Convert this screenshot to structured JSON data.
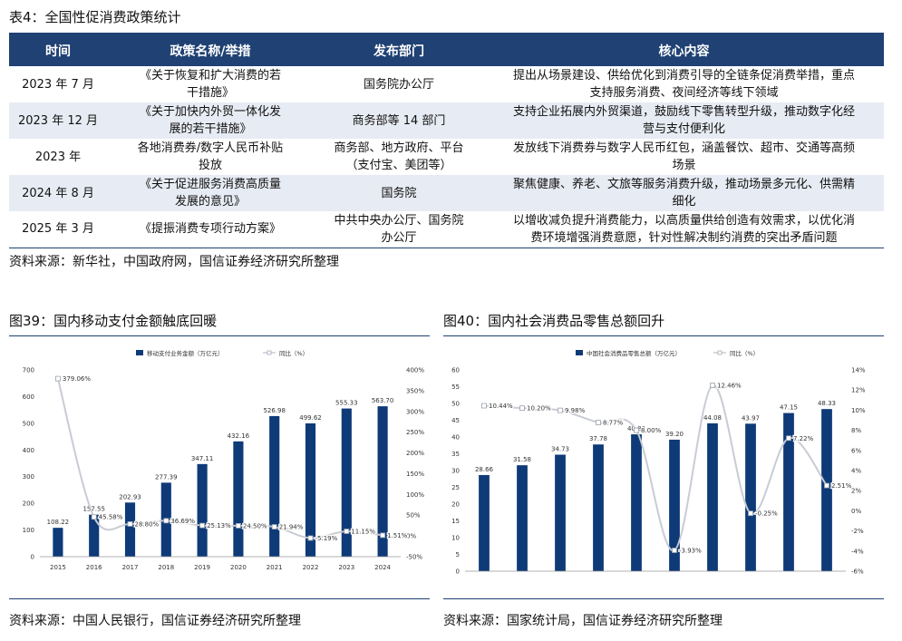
{
  "table": {
    "title": "表4：全国性促消费政策统计",
    "headers": [
      "时间",
      "政策名称/举措",
      "发布部门",
      "核心内容"
    ],
    "rows": [
      {
        "time": "2023 年 7 月",
        "name": [
          "《关于恢复和扩大消费的若",
          "干措施》"
        ],
        "dept": [
          "国务院办公厅"
        ],
        "content": [
          "提出从场景建设、供给优化到消费引导的全链条促消费举措，重点",
          "支持服务消费、夜间经济等线下领域"
        ]
      },
      {
        "time": "2023 年 12 月",
        "name": [
          "《关于加快内外贸一体化发",
          "展的若干措施》"
        ],
        "dept": [
          "商务部等 14 部门"
        ],
        "content": [
          "支持企业拓展内外贸渠道，鼓励线下零售转型升级，推动数字化经",
          "营与支付便利化"
        ]
      },
      {
        "time": "2023 年",
        "name": [
          "各地消费券/数字人民币补贴",
          "投放"
        ],
        "dept": [
          "商务部、地方政府、平台",
          "（支付宝、美团等）"
        ],
        "content": [
          "发放线下消费券与数字人民币红包，涵盖餐饮、超市、交通等高频",
          "场景"
        ]
      },
      {
        "time": "2024 年 8 月",
        "name": [
          "《关于促进服务消费高质量",
          "发展的意见》"
        ],
        "dept": [
          "国务院"
        ],
        "content": [
          "聚焦健康、养老、文旅等服务消费升级，推动场景多元化、供需精",
          "细化"
        ]
      },
      {
        "time": "2025 年 3 月",
        "name": [
          "《提振消费专项行动方案》"
        ],
        "dept": [
          "中共中央办公厅、国务院",
          "办公厅"
        ],
        "content": [
          "以增收减负提升消费能力，以高质量供给创造有效需求，以优化消",
          "费环境增强消费意愿，针对性解决制约消费的突出矛盾问题"
        ]
      }
    ],
    "source": "资料来源：新华社，中国政府网，国信证券经济研究所整理"
  },
  "fig39": {
    "title": "图39：国内移动支付金额触底回暖",
    "source": "资料来源：中国人民银行，国信证券经济研究所整理",
    "chart_data": {
      "type": "bar",
      "categories": [
        "2015",
        "2016",
        "2017",
        "2018",
        "2019",
        "2020",
        "2021",
        "2022",
        "2023",
        "2024"
      ],
      "series": [
        {
          "name": "移动支付业务金额（万亿元）",
          "kind": "bar",
          "axis": "left",
          "values": [
            108.22,
            157.55,
            202.93,
            277.39,
            347.11,
            432.16,
            526.98,
            499.62,
            555.33,
            563.7
          ],
          "labels": [
            "108.22",
            "157.55",
            "202.93",
            "277.39",
            "347.11",
            "432.16",
            "526.98",
            "499.62",
            "555.33",
            "563.70"
          ]
        },
        {
          "name": "同比（%）",
          "kind": "line",
          "axis": "right",
          "values": [
            379.06,
            45.58,
            28.8,
            36.69,
            25.13,
            24.5,
            21.94,
            -5.19,
            11.15,
            1.51
          ],
          "labels": [
            "379.06%",
            "45.58%",
            "28.80%",
            "36.69%",
            "25.13%",
            "24.50%",
            "21.94%",
            "-5.19%",
            "11.15%",
            "1.51%"
          ]
        }
      ],
      "y_left": {
        "min": 0,
        "max": 700,
        "ticks": [
          "0",
          "100",
          "200",
          "300",
          "400",
          "500",
          "600",
          "700"
        ]
      },
      "y_right": {
        "min": -50,
        "max": 400,
        "ticks": [
          "-50%",
          "0%",
          "50%",
          "100%",
          "150%",
          "200%",
          "250%",
          "300%",
          "350%",
          "400%"
        ]
      },
      "grid": false,
      "legend": "top",
      "colors": {
        "bar": "#0e3a78",
        "line": "#c8ccd4"
      }
    }
  },
  "fig40": {
    "title": "图40：国内社会消费品零售总额回升",
    "source": "资料来源：国家统计局，国信证券经济研究所整理",
    "chart_data": {
      "type": "bar",
      "categories": [
        "2015",
        "2016",
        "2017",
        "2018",
        "2019",
        "2020",
        "2021",
        "2022",
        "2023",
        "2024"
      ],
      "series": [
        {
          "name": "中国社会消费品零售总额（万亿元）",
          "kind": "bar",
          "axis": "left",
          "values": [
            28.66,
            31.58,
            34.73,
            37.78,
            40.8,
            39.2,
            44.08,
            43.97,
            47.15,
            48.33
          ],
          "labels": [
            "28.66",
            "31.58",
            "34.73",
            "37.78",
            "40.80",
            "39.20",
            "44.08",
            "43.97",
            "47.15",
            "48.33"
          ]
        },
        {
          "name": "同比（%）",
          "kind": "line",
          "axis": "right",
          "values": [
            10.44,
            10.2,
            9.98,
            8.77,
            8.0,
            -3.93,
            12.46,
            -0.25,
            7.22,
            2.51
          ],
          "labels": [
            "10.44%",
            "10.20%",
            "9.98%",
            "8.77%",
            "8.00%",
            "-3.93%",
            "12.46%",
            "-0.25%",
            "7.22%",
            "2.51%"
          ]
        }
      ],
      "y_left": {
        "min": 0,
        "max": 60,
        "ticks": [
          "0",
          "5",
          "10",
          "15",
          "20",
          "25",
          "30",
          "35",
          "40",
          "45",
          "50",
          "55",
          "60"
        ]
      },
      "y_right": {
        "min": -6,
        "max": 14,
        "ticks": [
          "-6%",
          "-4%",
          "-2%",
          "0%",
          "2%",
          "4%",
          "6%",
          "8%",
          "10%",
          "12%",
          "14%"
        ]
      },
      "grid": false,
      "legend": "top",
      "colors": {
        "bar": "#0e3a78",
        "line": "#c8ccd4"
      }
    }
  }
}
